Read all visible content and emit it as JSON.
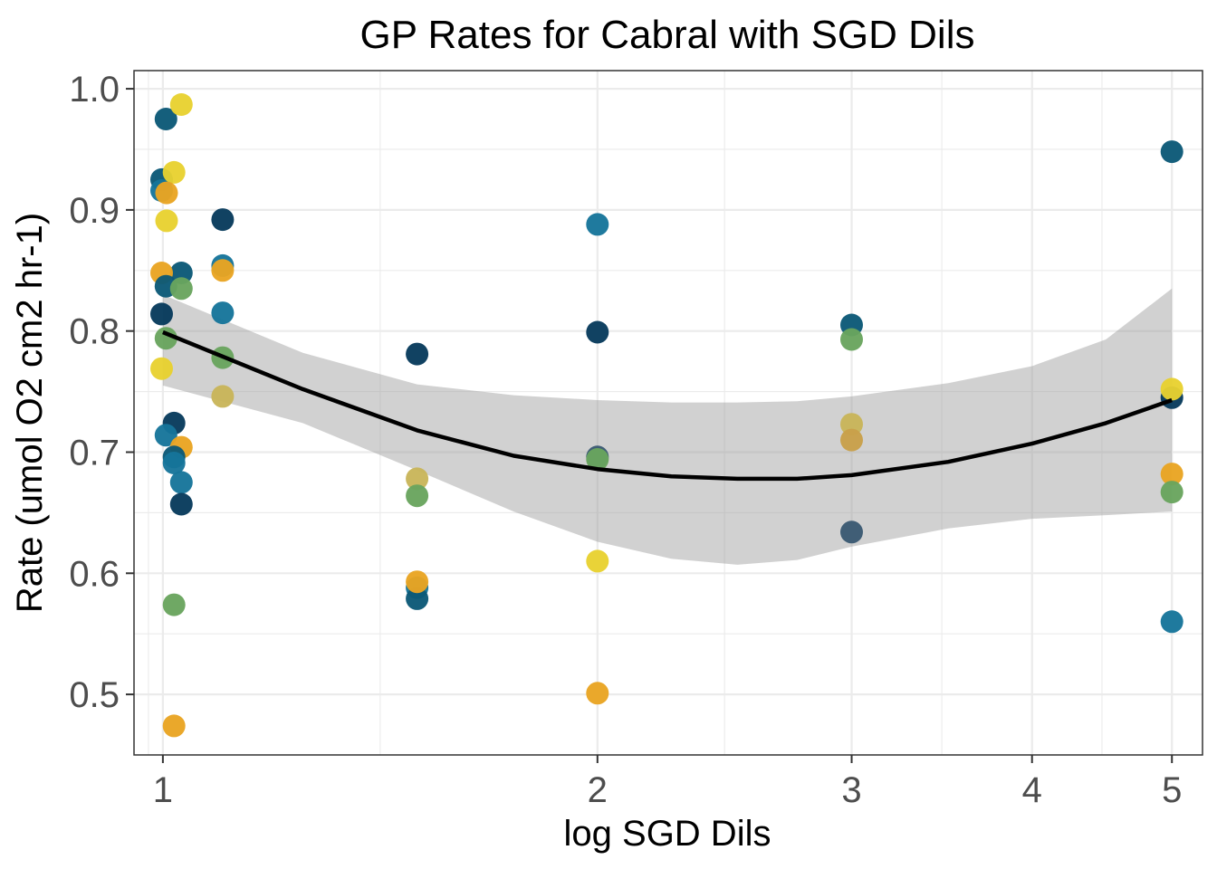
{
  "chart_data": {
    "type": "scatter",
    "title": "GP Rates for Cabral with SGD Dils",
    "xlabel": "log SGD Dils",
    "ylabel": "Rate (umol O2 cm2 hr-1)",
    "x_scale": "log",
    "x_ticks": [
      1,
      2,
      3,
      4,
      5
    ],
    "y_ticks": [
      0.5,
      0.6,
      0.7,
      0.8,
      0.9,
      1.0
    ],
    "xlim": [
      0.955,
      5.25
    ],
    "ylim": [
      0.45,
      1.015
    ],
    "grid": true,
    "legend": "none",
    "points": [
      {
        "x": 1.005,
        "y": 0.975,
        "color": "#0b5877"
      },
      {
        "x": 1.03,
        "y": 0.987,
        "color": "#e8d130"
      },
      {
        "x": 0.998,
        "y": 0.925,
        "color": "#0b5877"
      },
      {
        "x": 0.998,
        "y": 0.916,
        "color": "#16759a"
      },
      {
        "x": 1.018,
        "y": 0.931,
        "color": "#e8d130"
      },
      {
        "x": 1.006,
        "y": 0.914,
        "color": "#e9a422"
      },
      {
        "x": 1.006,
        "y": 0.891,
        "color": "#e8d130"
      },
      {
        "x": 1.1,
        "y": 0.892,
        "color": "#073a5c"
      },
      {
        "x": 1.1,
        "y": 0.854,
        "color": "#16759a"
      },
      {
        "x": 1.1,
        "y": 0.85,
        "color": "#e9a422"
      },
      {
        "x": 1.03,
        "y": 0.848,
        "color": "#0b5877"
      },
      {
        "x": 0.998,
        "y": 0.848,
        "color": "#e9a422"
      },
      {
        "x": 1.005,
        "y": 0.837,
        "color": "#0b5877"
      },
      {
        "x": 1.03,
        "y": 0.835,
        "color": "#69a45e"
      },
      {
        "x": 1.1,
        "y": 0.815,
        "color": "#16759a"
      },
      {
        "x": 0.998,
        "y": 0.814,
        "color": "#073a5c"
      },
      {
        "x": 1.005,
        "y": 0.794,
        "color": "#69a45e"
      },
      {
        "x": 1.1,
        "y": 0.778,
        "color": "#69a45e"
      },
      {
        "x": 0.998,
        "y": 0.769,
        "color": "#e8d130"
      },
      {
        "x": 1.1,
        "y": 0.746,
        "color": "#c9b55a"
      },
      {
        "x": 1.018,
        "y": 0.724,
        "color": "#073a5c"
      },
      {
        "x": 1.005,
        "y": 0.714,
        "color": "#16759a"
      },
      {
        "x": 1.03,
        "y": 0.704,
        "color": "#e9a422"
      },
      {
        "x": 1.018,
        "y": 0.696,
        "color": "#0b5877"
      },
      {
        "x": 1.018,
        "y": 0.691,
        "color": "#16759a"
      },
      {
        "x": 1.03,
        "y": 0.675,
        "color": "#16759a"
      },
      {
        "x": 1.03,
        "y": 0.657,
        "color": "#073a5c"
      },
      {
        "x": 1.018,
        "y": 0.574,
        "color": "#69a45e"
      },
      {
        "x": 1.018,
        "y": 0.474,
        "color": "#e9a422"
      },
      {
        "x": 1.5,
        "y": 0.781,
        "color": "#073a5c"
      },
      {
        "x": 1.5,
        "y": 0.678,
        "color": "#c9b55a"
      },
      {
        "x": 1.5,
        "y": 0.664,
        "color": "#69a45e"
      },
      {
        "x": 1.5,
        "y": 0.588,
        "color": "#16759a"
      },
      {
        "x": 1.5,
        "y": 0.579,
        "color": "#0b5877"
      },
      {
        "x": 1.5,
        "y": 0.593,
        "color": "#e9a422"
      },
      {
        "x": 2.0,
        "y": 0.888,
        "color": "#16759a"
      },
      {
        "x": 2.0,
        "y": 0.799,
        "color": "#073a5c"
      },
      {
        "x": 2.0,
        "y": 0.696,
        "color": "#3a5a72"
      },
      {
        "x": 2.0,
        "y": 0.694,
        "color": "#69a45e"
      },
      {
        "x": 2.0,
        "y": 0.61,
        "color": "#e8d130"
      },
      {
        "x": 2.0,
        "y": 0.501,
        "color": "#e9a422"
      },
      {
        "x": 3.0,
        "y": 0.805,
        "color": "#0b5877"
      },
      {
        "x": 3.0,
        "y": 0.793,
        "color": "#69a45e"
      },
      {
        "x": 3.0,
        "y": 0.723,
        "color": "#c9b55a"
      },
      {
        "x": 3.0,
        "y": 0.71,
        "color": "#c9a04a"
      },
      {
        "x": 3.0,
        "y": 0.634,
        "color": "#3a5a72"
      },
      {
        "x": 5.0,
        "y": 0.948,
        "color": "#0b5877"
      },
      {
        "x": 5.0,
        "y": 0.745,
        "color": "#073a5c"
      },
      {
        "x": 5.0,
        "y": 0.752,
        "color": "#e8d130"
      },
      {
        "x": 5.0,
        "y": 0.682,
        "color": "#e9a422"
      },
      {
        "x": 5.0,
        "y": 0.667,
        "color": "#69a45e"
      },
      {
        "x": 5.0,
        "y": 0.56,
        "color": "#16759a"
      }
    ],
    "smooth": {
      "color": "#000000",
      "band_color": "#999999",
      "x": [
        1.0,
        1.25,
        1.5,
        1.75,
        2.0,
        2.25,
        2.5,
        2.75,
        3.0,
        3.5,
        4.0,
        4.5,
        5.0
      ],
      "y": [
        0.799,
        0.752,
        0.718,
        0.697,
        0.686,
        0.68,
        0.678,
        0.678,
        0.681,
        0.692,
        0.707,
        0.724,
        0.743
      ],
      "ymin": [
        0.755,
        0.724,
        0.685,
        0.651,
        0.626,
        0.612,
        0.607,
        0.611,
        0.622,
        0.637,
        0.645,
        0.648,
        0.651
      ],
      "ymax": [
        0.83,
        0.782,
        0.756,
        0.747,
        0.743,
        0.741,
        0.741,
        0.742,
        0.746,
        0.757,
        0.771,
        0.793,
        0.835
      ]
    }
  }
}
